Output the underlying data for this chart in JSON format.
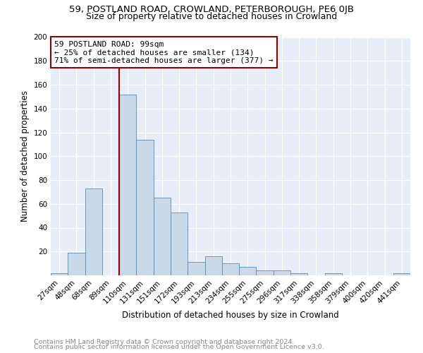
{
  "title": "59, POSTLAND ROAD, CROWLAND, PETERBOROUGH, PE6 0JB",
  "subtitle": "Size of property relative to detached houses in Crowland",
  "xlabel": "Distribution of detached houses by size in Crowland",
  "ylabel": "Number of detached properties",
  "bar_labels": [
    "27sqm",
    "48sqm",
    "68sqm",
    "89sqm",
    "110sqm",
    "131sqm",
    "151sqm",
    "172sqm",
    "193sqm",
    "213sqm",
    "234sqm",
    "255sqm",
    "275sqm",
    "296sqm",
    "317sqm",
    "338sqm",
    "358sqm",
    "379sqm",
    "400sqm",
    "420sqm",
    "441sqm"
  ],
  "bar_values": [
    2,
    19,
    73,
    0,
    152,
    114,
    65,
    53,
    11,
    16,
    10,
    7,
    4,
    4,
    2,
    0,
    2,
    0,
    0,
    0,
    2
  ],
  "bar_color": "#c9d9e8",
  "bar_edge_color": "#5a8ab5",
  "bg_color": "#e8eef7",
  "vline_color": "#8b0000",
  "annotation_text": "59 POSTLAND ROAD: 99sqm\n← 25% of detached houses are smaller (134)\n71% of semi-detached houses are larger (377) →",
  "annotation_box_edge": "#8b0000",
  "ylim": [
    0,
    200
  ],
  "yticks": [
    0,
    20,
    40,
    60,
    80,
    100,
    120,
    140,
    160,
    180,
    200
  ],
  "footer_line1": "Contains HM Land Registry data © Crown copyright and database right 2024.",
  "footer_line2": "Contains public sector information licensed under the Open Government Licence v3.0.",
  "title_fontsize": 9.5,
  "subtitle_fontsize": 9,
  "axis_label_fontsize": 8.5,
  "tick_fontsize": 7.5,
  "annotation_fontsize": 8,
  "footer_fontsize": 6.8
}
